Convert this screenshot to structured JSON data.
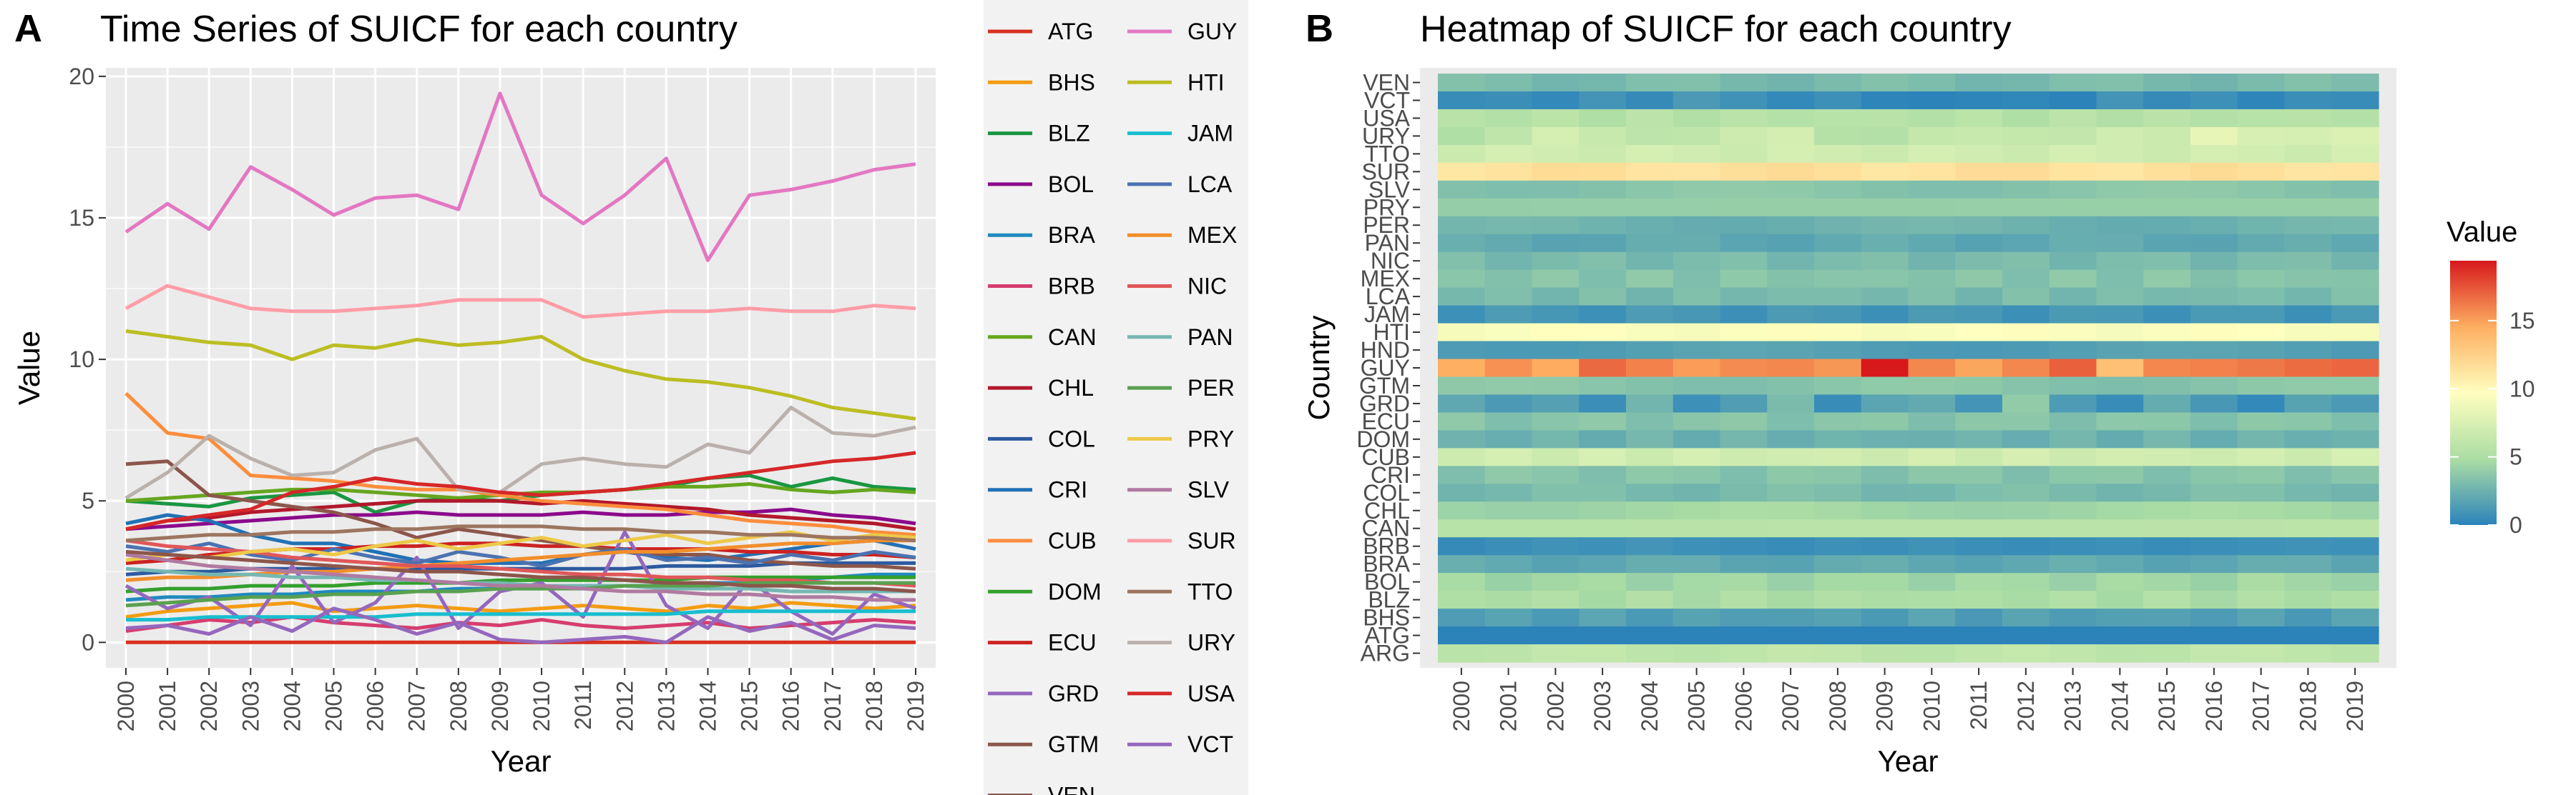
{
  "panel_a": {
    "letter": "A",
    "title": "Time Series of SUICF for each country",
    "xlabel": "Year",
    "ylabel": "Value"
  },
  "panel_b": {
    "letter": "B",
    "title": "Heatmap of SUICF for each country",
    "xlabel": "Year",
    "ylabel": "Country",
    "colorbar_title": "Value"
  },
  "chart_data": [
    {
      "type": "line",
      "title": "Time Series of SUICF for each country",
      "xlabel": "Year",
      "ylabel": "Value",
      "x": [
        2000,
        2001,
        2002,
        2003,
        2004,
        2005,
        2006,
        2007,
        2008,
        2009,
        2010,
        2011,
        2012,
        2013,
        2014,
        2015,
        2016,
        2017,
        2018,
        2019
      ],
      "xlim": [
        2000,
        2019
      ],
      "ylim": [
        -0.9,
        20.3
      ],
      "yticks": [
        0,
        5,
        10,
        15,
        20
      ],
      "grid": true,
      "background": "#ebebeb",
      "legend_placement": "right",
      "series": [
        {
          "name": "ATG",
          "color": "#d7301f",
          "values": [
            0.0,
            0.0,
            0.0,
            0.0,
            0.0,
            0.0,
            0.0,
            0.0,
            0.0,
            0.0,
            0.0,
            0.0,
            0.0,
            0.0,
            0.0,
            0.0,
            0.0,
            0.0,
            0.0,
            0.0
          ]
        },
        {
          "name": "BHS",
          "color": "#f39c12",
          "values": [
            0.9,
            1.1,
            1.2,
            1.3,
            1.4,
            1.1,
            1.2,
            1.3,
            1.2,
            1.1,
            1.2,
            1.3,
            1.2,
            1.1,
            1.3,
            1.2,
            1.4,
            1.3,
            1.2,
            1.3
          ]
        },
        {
          "name": "BLZ",
          "color": "#1a9641",
          "values": [
            5.0,
            4.9,
            4.8,
            5.1,
            5.2,
            5.3,
            4.6,
            5.0,
            5.1,
            5.0,
            5.2,
            5.3,
            5.4,
            5.5,
            5.8,
            5.9,
            5.5,
            5.8,
            5.5,
            5.4
          ]
        },
        {
          "name": "BOL",
          "color": "#8b0a8b",
          "values": [
            4.0,
            4.1,
            4.2,
            4.3,
            4.4,
            4.5,
            4.5,
            4.6,
            4.5,
            4.5,
            4.5,
            4.6,
            4.5,
            4.5,
            4.6,
            4.6,
            4.7,
            4.5,
            4.4,
            4.2
          ]
        },
        {
          "name": "BRA",
          "color": "#1f8ac0",
          "values": [
            1.5,
            1.6,
            1.6,
            1.7,
            1.7,
            1.8,
            1.8,
            1.8,
            1.9,
            1.9,
            1.9,
            2.0,
            2.0,
            2.0,
            2.1,
            2.1,
            2.2,
            2.3,
            2.4,
            2.4
          ]
        },
        {
          "name": "BRB",
          "color": "#d63d6e",
          "values": [
            0.4,
            0.6,
            0.8,
            0.7,
            0.9,
            0.7,
            0.6,
            0.5,
            0.7,
            0.6,
            0.8,
            0.6,
            0.5,
            0.6,
            0.7,
            0.5,
            0.6,
            0.7,
            0.8,
            0.7
          ]
        },
        {
          "name": "CAN",
          "color": "#66a61e",
          "values": [
            5.0,
            5.1,
            5.2,
            5.3,
            5.4,
            5.4,
            5.3,
            5.2,
            5.1,
            5.2,
            5.3,
            5.3,
            5.4,
            5.5,
            5.5,
            5.6,
            5.4,
            5.3,
            5.4,
            5.3
          ]
        },
        {
          "name": "CHL",
          "color": "#b2182b",
          "values": [
            4.0,
            4.3,
            4.4,
            4.6,
            4.7,
            4.8,
            4.9,
            5.0,
            5.0,
            5.0,
            4.9,
            5.0,
            4.9,
            4.8,
            4.7,
            4.5,
            4.4,
            4.3,
            4.2,
            4.0
          ]
        },
        {
          "name": "COL",
          "color": "#2c5aa0",
          "values": [
            2.4,
            2.5,
            2.5,
            2.6,
            2.6,
            2.6,
            2.6,
            2.6,
            2.6,
            2.6,
            2.6,
            2.6,
            2.6,
            2.7,
            2.7,
            2.7,
            2.8,
            2.8,
            2.8,
            2.8
          ]
        },
        {
          "name": "CRI",
          "color": "#2171b5",
          "values": [
            4.2,
            4.5,
            4.3,
            3.8,
            3.5,
            3.5,
            3.2,
            2.9,
            2.8,
            2.8,
            2.8,
            3.1,
            3.2,
            3.0,
            2.9,
            3.1,
            3.3,
            3.5,
            3.6,
            3.3
          ]
        },
        {
          "name": "CUB",
          "color": "#fd8d3c",
          "values": [
            8.8,
            7.4,
            7.2,
            5.9,
            5.8,
            5.7,
            5.5,
            5.4,
            5.4,
            5.2,
            5.0,
            4.9,
            4.8,
            4.7,
            4.5,
            4.3,
            4.2,
            4.1,
            3.9,
            3.8
          ]
        },
        {
          "name": "DOM",
          "color": "#33a02c",
          "values": [
            1.8,
            1.9,
            1.9,
            2.0,
            2.0,
            2.0,
            2.1,
            2.1,
            2.1,
            2.2,
            2.2,
            2.2,
            2.2,
            2.2,
            2.3,
            2.3,
            2.3,
            2.3,
            2.3,
            2.3
          ]
        },
        {
          "name": "ECU",
          "color": "#cc2222",
          "values": [
            2.8,
            2.9,
            3.1,
            3.2,
            3.3,
            3.3,
            3.4,
            3.4,
            3.5,
            3.5,
            3.4,
            3.4,
            3.3,
            3.3,
            3.3,
            3.2,
            3.2,
            3.1,
            3.1,
            3.0
          ]
        },
        {
          "name": "GRD",
          "color": "#9467bd",
          "values": [
            2.0,
            1.2,
            1.6,
            0.6,
            2.7,
            0.7,
            1.4,
            3.0,
            0.5,
            1.8,
            2.1,
            0.9,
            3.9,
            1.3,
            0.5,
            2.2,
            1.1,
            0.3,
            1.7,
            1.2
          ]
        },
        {
          "name": "GTM",
          "color": "#8c564b",
          "values": [
            6.3,
            6.4,
            5.2,
            5.0,
            4.8,
            4.6,
            4.2,
            3.7,
            4.0,
            3.8,
            3.6,
            3.4,
            3.2,
            3.1,
            3.1,
            2.9,
            2.8,
            2.7,
            2.7,
            2.6
          ]
        },
        {
          "name": "GUY",
          "color": "#e377c2",
          "values": [
            14.5,
            15.5,
            14.6,
            16.8,
            16.0,
            15.1,
            15.7,
            15.8,
            15.3,
            19.4,
            15.8,
            14.8,
            15.8,
            17.1,
            13.5,
            15.8,
            16.0,
            16.3,
            16.7,
            16.9
          ]
        },
        {
          "name": "HTI",
          "color": "#bcbd22",
          "values": [
            11.0,
            10.8,
            10.6,
            10.5,
            10.0,
            10.5,
            10.4,
            10.7,
            10.5,
            10.6,
            10.8,
            10.0,
            9.6,
            9.3,
            9.2,
            9.0,
            8.7,
            8.3,
            8.1,
            7.9
          ]
        },
        {
          "name": "JAM",
          "color": "#17becf",
          "values": [
            0.8,
            0.8,
            0.9,
            0.9,
            0.9,
            0.9,
            0.9,
            1.0,
            1.0,
            1.0,
            1.0,
            1.0,
            1.0,
            1.0,
            1.1,
            1.1,
            1.1,
            1.1,
            1.1,
            1.1
          ]
        },
        {
          "name": "LCA",
          "color": "#4c72b0",
          "values": [
            3.4,
            3.2,
            3.5,
            3.1,
            2.9,
            3.3,
            3.0,
            2.8,
            3.2,
            3.0,
            2.7,
            3.1,
            3.3,
            2.9,
            3.0,
            2.8,
            3.1,
            2.9,
            3.2,
            3.0
          ]
        },
        {
          "name": "MEX",
          "color": "#f28e2b",
          "values": [
            2.2,
            2.3,
            2.3,
            2.4,
            2.5,
            2.5,
            2.6,
            2.7,
            2.8,
            2.9,
            3.0,
            3.1,
            3.2,
            3.2,
            3.3,
            3.4,
            3.5,
            3.5,
            3.6,
            3.6
          ]
        },
        {
          "name": "NIC",
          "color": "#e15759",
          "values": [
            3.6,
            3.4,
            3.3,
            3.2,
            3.0,
            2.9,
            2.8,
            2.7,
            2.7,
            2.6,
            2.5,
            2.4,
            2.4,
            2.3,
            2.3,
            2.2,
            2.2,
            2.1,
            2.1,
            2.0
          ]
        },
        {
          "name": "PAN",
          "color": "#76b7b2",
          "values": [
            2.6,
            2.5,
            2.4,
            2.4,
            2.3,
            2.3,
            2.2,
            2.2,
            2.1,
            2.1,
            2.0,
            2.0,
            2.0,
            1.9,
            1.9,
            1.9,
            1.8,
            1.8,
            1.8,
            1.8
          ]
        },
        {
          "name": "PER",
          "color": "#59a14f",
          "values": [
            1.3,
            1.4,
            1.5,
            1.6,
            1.6,
            1.7,
            1.7,
            1.8,
            1.8,
            1.9,
            1.9,
            1.9,
            2.0,
            2.0,
            2.0,
            2.1,
            2.1,
            2.1,
            2.1,
            2.1
          ]
        },
        {
          "name": "PRY",
          "color": "#edc948",
          "values": [
            2.9,
            3.1,
            3.0,
            3.2,
            3.3,
            3.1,
            3.4,
            3.6,
            3.3,
            3.5,
            3.7,
            3.4,
            3.6,
            3.8,
            3.5,
            3.7,
            3.9,
            3.6,
            3.8,
            3.7
          ]
        },
        {
          "name": "SLV",
          "color": "#b07aa1",
          "values": [
            3.1,
            2.9,
            2.7,
            2.6,
            2.5,
            2.4,
            2.3,
            2.2,
            2.1,
            2.0,
            2.0,
            1.9,
            1.8,
            1.8,
            1.7,
            1.7,
            1.6,
            1.6,
            1.5,
            1.5
          ]
        },
        {
          "name": "SUR",
          "color": "#ff9da7",
          "values": [
            11.8,
            12.6,
            12.2,
            11.8,
            11.7,
            11.7,
            11.8,
            11.9,
            12.1,
            12.1,
            12.1,
            11.5,
            11.6,
            11.7,
            11.7,
            11.8,
            11.7,
            11.7,
            11.9,
            11.8
          ]
        },
        {
          "name": "TTO",
          "color": "#9c755f",
          "values": [
            3.6,
            3.7,
            3.8,
            3.8,
            3.9,
            3.9,
            4.0,
            4.0,
            4.1,
            4.1,
            4.1,
            4.0,
            4.0,
            3.9,
            3.9,
            3.8,
            3.8,
            3.7,
            3.7,
            3.6
          ]
        },
        {
          "name": "URY",
          "color": "#bab0ac",
          "values": [
            5.1,
            6.0,
            7.3,
            6.5,
            5.9,
            6.0,
            6.8,
            7.2,
            5.4,
            5.3,
            6.3,
            6.5,
            6.3,
            6.2,
            7.0,
            6.7,
            8.3,
            7.4,
            7.3,
            7.6
          ]
        },
        {
          "name": "USA",
          "color": "#d62728",
          "values": [
            4.0,
            4.3,
            4.5,
            4.7,
            5.3,
            5.5,
            5.8,
            5.6,
            5.5,
            5.3,
            5.2,
            5.3,
            5.4,
            5.6,
            5.8,
            6.0,
            6.2,
            6.4,
            6.5,
            6.7
          ]
        },
        {
          "name": "VCT",
          "color": "#9467bd",
          "values": [
            0.5,
            0.6,
            0.3,
            0.9,
            0.4,
            1.2,
            0.8,
            0.3,
            0.7,
            0.1,
            0.0,
            0.1,
            0.2,
            0.0,
            0.9,
            0.4,
            0.7,
            0.1,
            0.6,
            0.5
          ]
        },
        {
          "name": "VEN",
          "color": "#8c564b",
          "values": [
            3.2,
            3.1,
            3.0,
            2.9,
            2.8,
            2.7,
            2.6,
            2.5,
            2.5,
            2.4,
            2.3,
            2.3,
            2.2,
            2.1,
            2.1,
            2.0,
            2.0,
            1.9,
            1.9,
            1.8
          ]
        }
      ]
    },
    {
      "type": "heatmap",
      "title": "Heatmap of SUICF for each country",
      "xlabel": "Year",
      "ylabel": "Country",
      "x": [
        2000,
        2001,
        2002,
        2003,
        2004,
        2005,
        2006,
        2007,
        2008,
        2009,
        2010,
        2011,
        2012,
        2013,
        2014,
        2015,
        2016,
        2017,
        2018,
        2019
      ],
      "countries_top_to_bottom": [
        "VEN",
        "VCT",
        "USA",
        "URY",
        "TTO",
        "SUR",
        "SLV",
        "PRY",
        "PER",
        "PAN",
        "NIC",
        "MEX",
        "LCA",
        "JAM",
        "HTI",
        "HND",
        "GUY",
        "GTM",
        "GRD",
        "ECU",
        "DOM",
        "CUB",
        "CRI",
        "COL",
        "CHL",
        "CAN",
        "BRB",
        "BRA",
        "BOL",
        "BLZ",
        "BHS",
        "ATG",
        "ARG"
      ],
      "row_values": [
        3.0,
        0.8,
        5.5,
        8.5,
        7.0,
        11.5,
        3.5,
        4.0,
        2.5,
        2.0,
        3.0,
        3.5,
        3.0,
        1.0,
        9.5,
        1.5,
        15.5,
        3.5,
        2.0,
        3.5,
        2.5,
        7.0,
        3.5,
        3.0,
        4.5,
        5.5,
        0.5,
        2.0,
        4.5,
        5.0,
        1.5,
        0.5,
        6.0
      ],
      "row_variations": {
        "VCT": [
          0.5,
          0.6,
          0.3,
          0.9,
          0.4,
          1.2,
          0.8,
          0.3,
          0.7,
          0.1,
          0.0,
          0.1,
          0.2,
          0.0,
          0.9,
          0.4,
          0.7,
          0.1,
          0.6,
          0.5
        ],
        "URY": [
          5.1,
          6.0,
          7.3,
          6.5,
          5.9,
          6.0,
          6.8,
          7.2,
          5.4,
          5.3,
          6.3,
          6.5,
          6.3,
          6.2,
          7.0,
          6.7,
          8.3,
          7.4,
          7.3,
          7.6
        ],
        "GUY": [
          14.5,
          15.5,
          14.6,
          16.8,
          16.0,
          15.1,
          15.7,
          15.8,
          15.3,
          19.4,
          15.8,
          14.8,
          15.8,
          17.1,
          13.5,
          15.8,
          16.0,
          16.3,
          16.7,
          16.9
        ],
        "GRD": [
          2.0,
          1.2,
          1.6,
          0.6,
          2.7,
          0.7,
          1.4,
          3.0,
          0.5,
          1.8,
          2.1,
          0.9,
          3.9,
          1.3,
          0.5,
          2.2,
          1.1,
          0.3,
          1.7,
          1.2
        ],
        "BRB": [
          0.4,
          0.6,
          0.8,
          0.7,
          0.9,
          0.7,
          0.6,
          0.5,
          0.7,
          0.6,
          0.8,
          0.6,
          0.5,
          0.6,
          0.7,
          0.5,
          0.6,
          0.7,
          0.8,
          0.7
        ],
        "ATG": [
          0.0,
          0.0,
          0.0,
          0.0,
          0.0,
          0.0,
          0.0,
          0.0,
          0.0,
          0.0,
          0.0,
          0.0,
          0.0,
          0.0,
          0.0,
          0.0,
          0.0,
          0.0,
          0.0,
          0.0
        ]
      },
      "colorbar": {
        "title": "Value",
        "ticks": [
          0,
          5,
          10,
          15
        ],
        "range": [
          0,
          19.4
        ],
        "colors": [
          "#2b83ba",
          "#abdda4",
          "#ffffbf",
          "#fdae61",
          "#d7191c"
        ]
      }
    }
  ]
}
